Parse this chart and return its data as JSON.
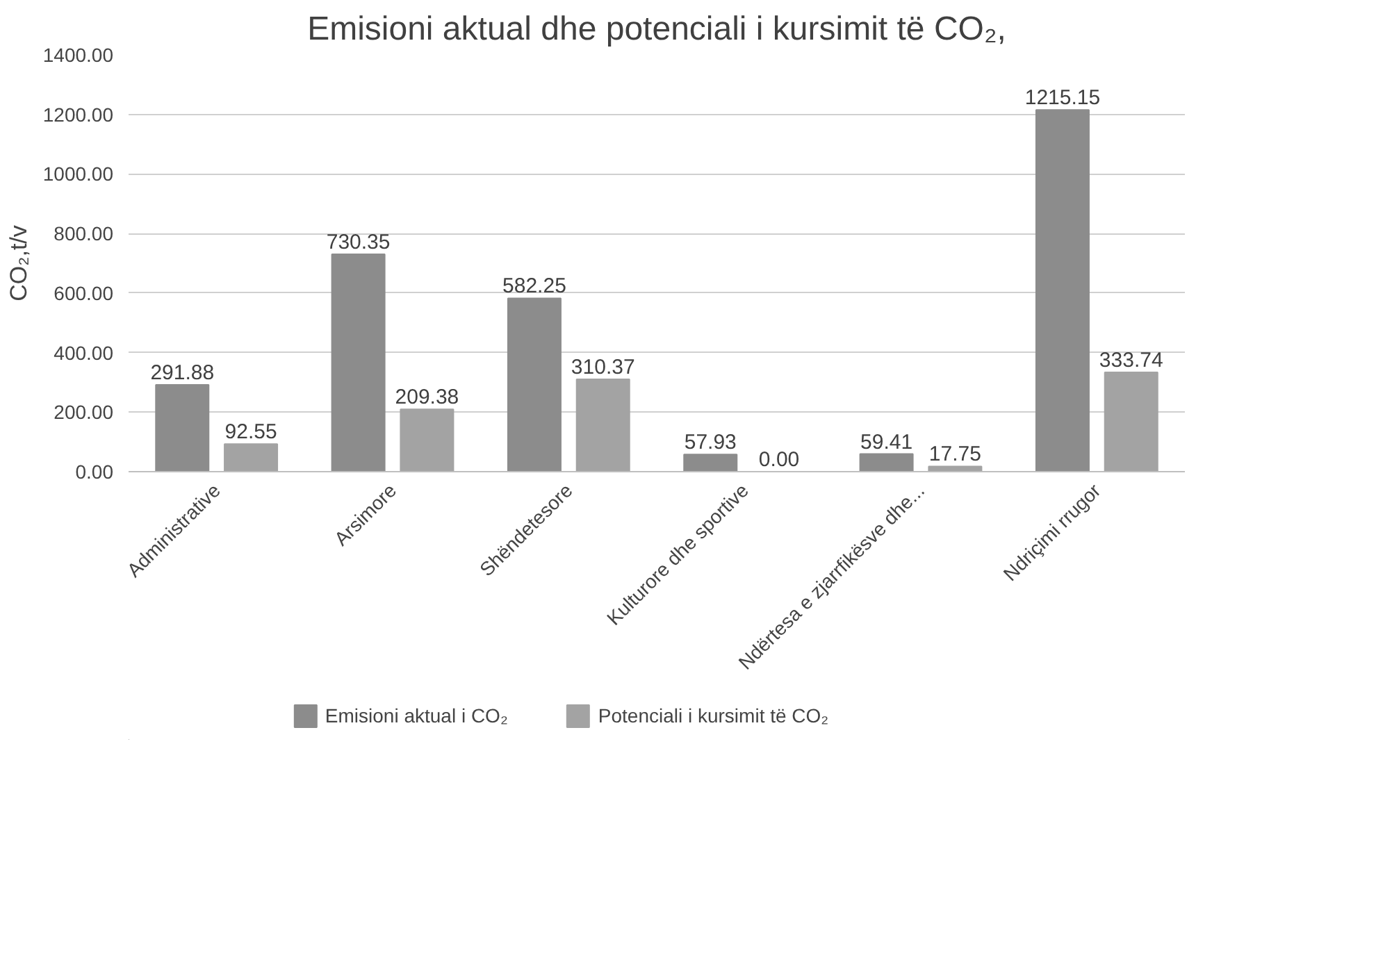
{
  "chart_data": {
    "type": "bar",
    "title": "Emisioni aktual dhe potenciali i kursimit të CO₂,",
    "ylabel": "CO₂,t/v",
    "categories": [
      "Administrative",
      "Arsimore",
      "Shëndetesore",
      "Kulturore dhe sportive",
      "Ndërtesa e zjarrfikësve dhe...",
      "Ndriçimi rrugor"
    ],
    "series": [
      {
        "name": "Emisioni aktual i CO₂",
        "color": "#8c8c8c",
        "values": [
          291.88,
          730.35,
          582.25,
          57.93,
          59.41,
          1215.15
        ],
        "value_labels": [
          "291.88",
          "730.35",
          "582.25",
          "57.93",
          "59.41",
          "1215.15"
        ]
      },
      {
        "name": "Potenciali i kursimit të CO₂",
        "color": "#a3a3a3",
        "values": [
          92.55,
          209.38,
          310.37,
          0.0,
          17.75,
          333.74
        ],
        "value_labels": [
          "92.55",
          "209.38",
          "310.37",
          "0.00",
          "17.75",
          "333.74"
        ]
      }
    ],
    "ylim": [
      0,
      1400
    ],
    "yticks": [
      {
        "value": 0,
        "label": "0.00"
      },
      {
        "value": 200,
        "label": "200.00"
      },
      {
        "value": 400,
        "label": "400.00"
      },
      {
        "value": 600,
        "label": "600.00"
      },
      {
        "value": 800,
        "label": "800.00"
      },
      {
        "value": 1000,
        "label": "1000.00"
      },
      {
        "value": 1200,
        "label": "1200.00"
      },
      {
        "value": 1400,
        "label": "1400.00"
      }
    ],
    "grid": "y",
    "legend": "bottom"
  }
}
